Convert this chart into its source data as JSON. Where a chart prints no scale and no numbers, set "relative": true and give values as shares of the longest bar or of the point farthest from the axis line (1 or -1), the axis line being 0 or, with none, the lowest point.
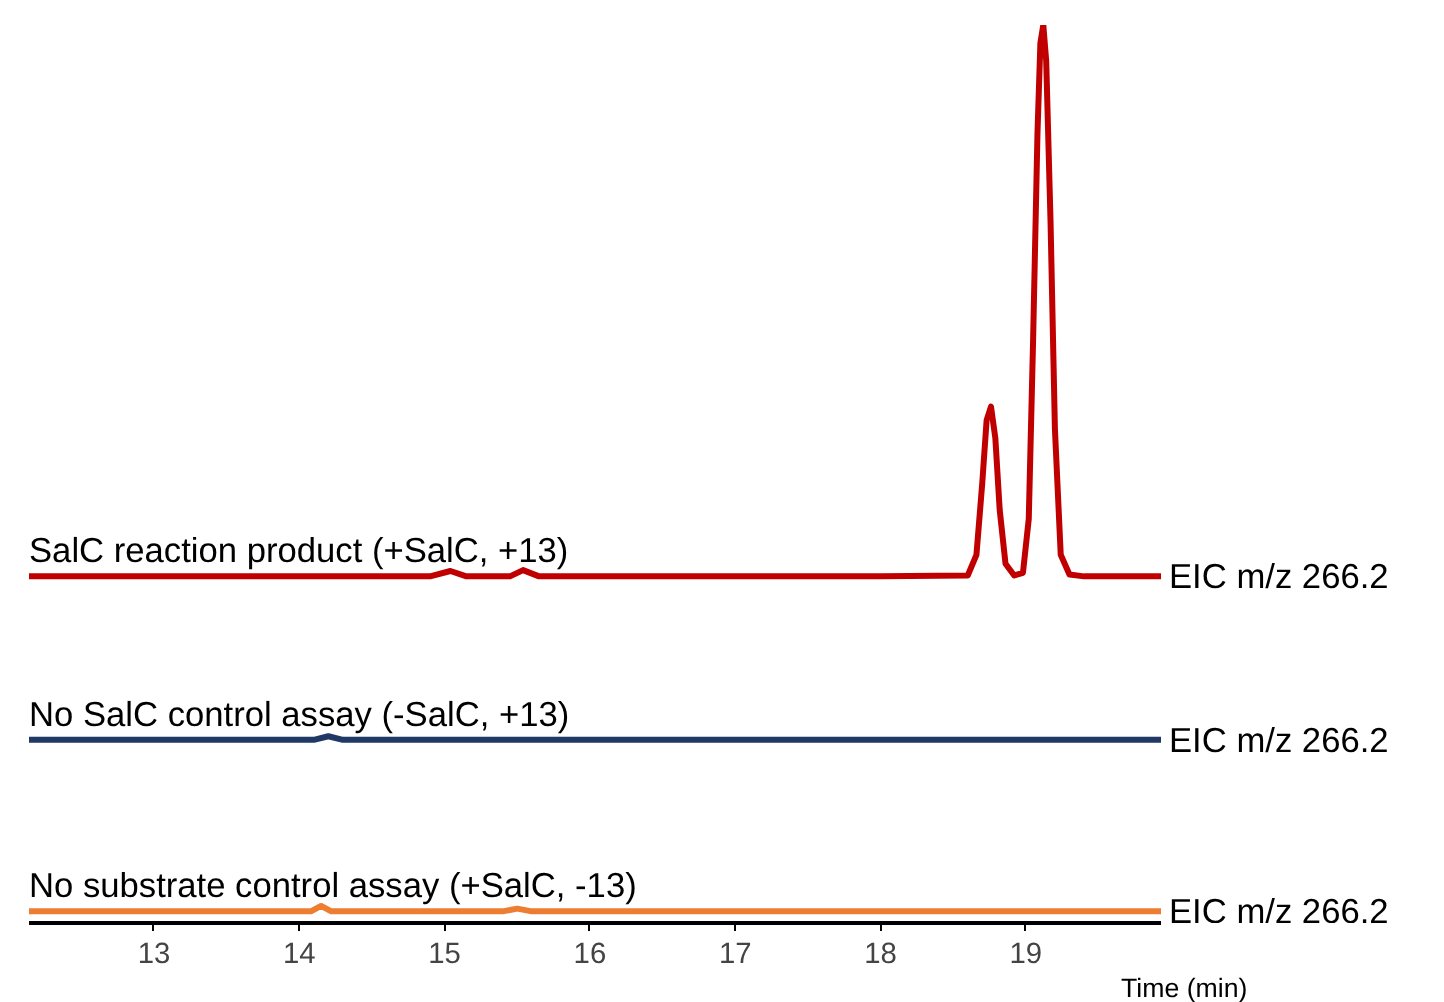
{
  "chart_data": {
    "type": "line",
    "relative": true,
    "xlabel": "Time (min)",
    "xlim": [
      12.14,
      19.93
    ],
    "xticks": [
      13,
      14,
      15,
      16,
      17,
      18,
      19
    ],
    "series": [
      {
        "name": "SalC reaction product (+SalC, +13)",
        "color": "#c00000",
        "x": [
          12.14,
          13,
          14,
          14.9,
          15.04,
          15.15,
          15.45,
          15.54,
          15.65,
          16,
          17,
          18,
          18.6,
          18.66,
          18.7,
          18.73,
          18.76,
          18.79,
          18.82,
          18.86,
          18.92,
          18.98,
          19.02,
          19.05,
          19.08,
          19.1,
          19.12,
          19.14,
          19.17,
          19.2,
          19.24,
          19.3,
          19.4,
          19.93
        ],
        "values": [
          0.386,
          0.386,
          0.386,
          0.386,
          0.392,
          0.386,
          0.386,
          0.393,
          0.386,
          0.386,
          0.386,
          0.386,
          0.387,
          0.41,
          0.49,
          0.56,
          0.575,
          0.54,
          0.46,
          0.4,
          0.387,
          0.39,
          0.45,
          0.65,
          0.88,
          0.98,
          1.0,
          0.96,
          0.78,
          0.55,
          0.41,
          0.388,
          0.386,
          0.386
        ]
      },
      {
        "name": "No SalC control assay (-SalC, +13)",
        "color": "#1f3864",
        "x": [
          12.14,
          13,
          14,
          14.1,
          14.2,
          14.3,
          15,
          16,
          17,
          18,
          19,
          19.93
        ],
        "values": [
          0.204,
          0.204,
          0.204,
          0.204,
          0.208,
          0.204,
          0.204,
          0.204,
          0.204,
          0.204,
          0.204,
          0.204
        ]
      },
      {
        "name": "No substrate control assay (+SalC, -13)",
        "color": "#ed7d31",
        "x": [
          12.14,
          13,
          14,
          14.08,
          14.15,
          14.22,
          15,
          15.4,
          15.5,
          15.6,
          16,
          17,
          18,
          19,
          19.93
        ],
        "values": [
          0.013,
          0.013,
          0.013,
          0.013,
          0.019,
          0.013,
          0.013,
          0.013,
          0.016,
          0.013,
          0.013,
          0.013,
          0.013,
          0.013,
          0.013
        ]
      }
    ],
    "annotations": [
      "EIC m/z 266.2",
      "EIC m/z 266.2",
      "EIC m/z 266.2"
    ]
  }
}
